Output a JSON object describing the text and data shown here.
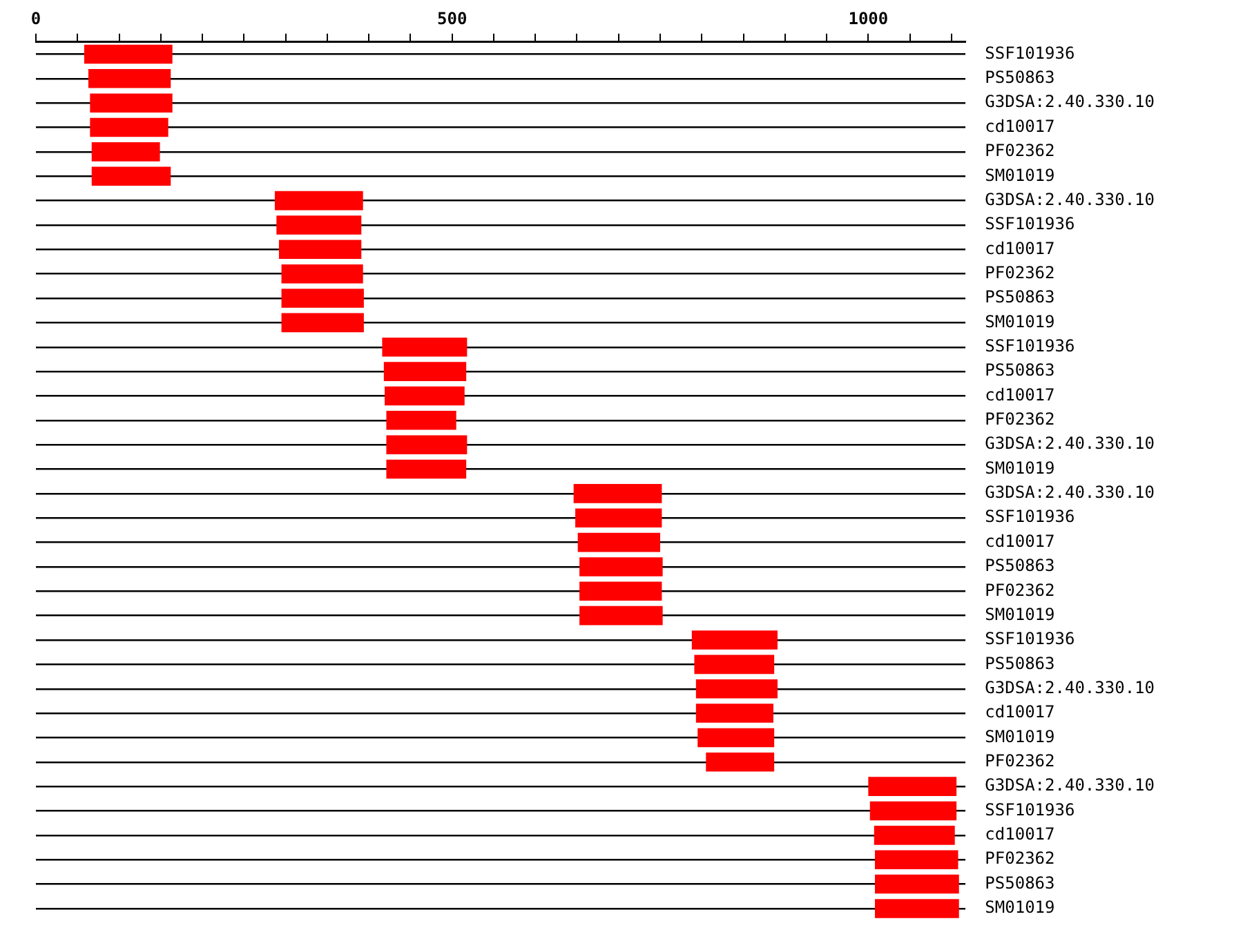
{
  "chart_data": {
    "type": "bar",
    "orientation": "horizontal",
    "categories": [
      "SSF101936",
      "PS50863",
      "G3DSA:2.40.330.10",
      "cd10017",
      "PF02362",
      "SM01019",
      "G3DSA:2.40.330.10",
      "SSF101936",
      "cd10017",
      "PF02362",
      "PS50863",
      "SM01019",
      "SSF101936",
      "PS50863",
      "cd10017",
      "PF02362",
      "G3DSA:2.40.330.10",
      "SM01019",
      "G3DSA:2.40.330.10",
      "SSF101936",
      "cd10017",
      "PS50863",
      "PF02362",
      "SM01019",
      "SSF101936",
      "PS50863",
      "G3DSA:2.40.330.10",
      "cd10017",
      "SM01019",
      "PF02362",
      "G3DSA:2.40.330.10",
      "SSF101936",
      "cd10017",
      "PF02362",
      "PS50863",
      "SM01019"
    ],
    "base": [
      58,
      63,
      65,
      65,
      67,
      67,
      287,
      289,
      292,
      295,
      295,
      295,
      416,
      418,
      419,
      421,
      421,
      421,
      646,
      648,
      651,
      653,
      653,
      653,
      788,
      791,
      793,
      793,
      795,
      805,
      1000,
      1002,
      1007,
      1008,
      1008,
      1008
    ],
    "values": [
      106,
      99,
      99,
      94,
      82,
      95,
      106,
      102,
      99,
      98,
      99,
      99,
      102,
      99,
      96,
      84,
      97,
      96,
      106,
      104,
      99,
      100,
      99,
      100,
      103,
      96,
      98,
      93,
      92,
      82,
      106,
      104,
      97,
      100,
      101,
      101
    ],
    "color": "#ff0000",
    "xlim": [
      0,
      1117
    ],
    "xticks": [
      0,
      {
        "value": 50,
        "label": null
      },
      {
        "value": 100,
        "label": null
      },
      {
        "value": 150,
        "label": null
      },
      {
        "value": 200,
        "label": null
      },
      {
        "value": 250,
        "label": null
      },
      {
        "value": 300,
        "label": null
      },
      {
        "value": 350,
        "label": null
      },
      {
        "value": 400,
        "label": null
      },
      {
        "value": 450,
        "label": null
      },
      500,
      {
        "value": 550,
        "label": null
      },
      {
        "value": 600,
        "label": null
      },
      {
        "value": 650,
        "label": null
      },
      {
        "value": 700,
        "label": null
      },
      {
        "value": 750,
        "label": null
      },
      {
        "value": 800,
        "label": null
      },
      {
        "value": 850,
        "label": null
      },
      {
        "value": 900,
        "label": null
      },
      {
        "value": 950,
        "label": null
      },
      1000,
      {
        "value": 1050,
        "label": null
      },
      {
        "value": 1100,
        "label": null
      }
    ],
    "grid": "y"
  }
}
